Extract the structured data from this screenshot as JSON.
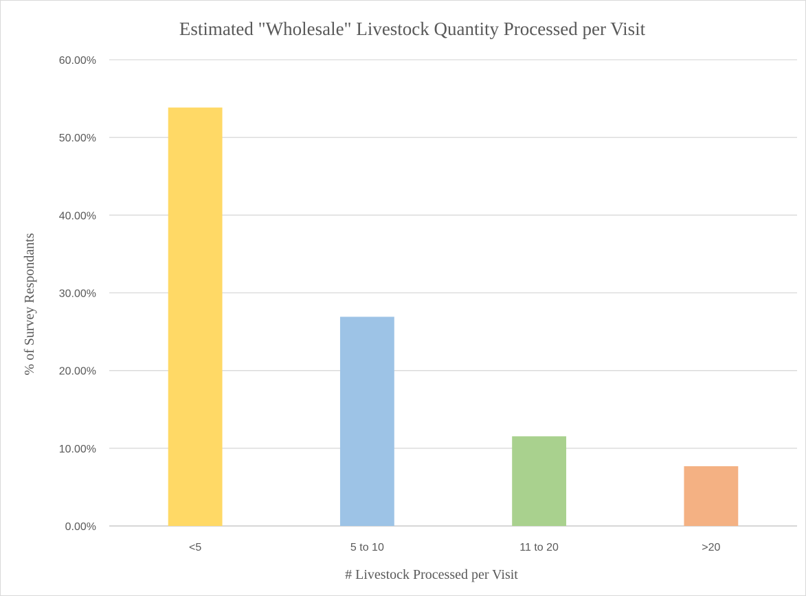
{
  "chart_data": {
    "type": "bar",
    "title": "Estimated \"Wholesale\" Livestock Quantity Processed per Visit",
    "xlabel": "# Livestock Processed per Visit",
    "ylabel": "% of Survey Respondants",
    "categories": [
      "<5",
      "5 to 10",
      "11 to 20",
      ">20"
    ],
    "values": [
      53.85,
      26.92,
      11.54,
      7.69
    ],
    "bar_colors": [
      "#FFD966",
      "#9DC3E6",
      "#A9D18E",
      "#F4B183"
    ],
    "ylim": [
      0,
      60
    ],
    "yticks": [
      0,
      10,
      20,
      30,
      40,
      50,
      60
    ],
    "ytick_labels": [
      "0.00%",
      "10.00%",
      "20.00%",
      "30.00%",
      "40.00%",
      "50.00%",
      "60.00%"
    ],
    "grid": true,
    "legend": "none"
  }
}
